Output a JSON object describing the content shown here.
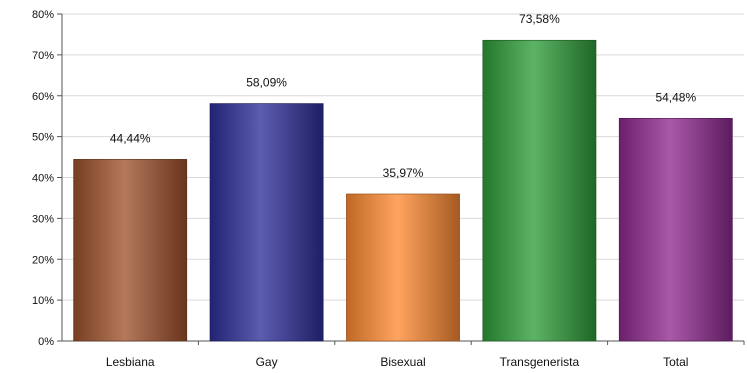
{
  "chart_data": {
    "type": "bar",
    "categories": [
      "Lesbiana",
      "Gay",
      "Bisexual",
      "Transgenerista",
      "Total"
    ],
    "values": [
      44.44,
      58.09,
      35.97,
      73.58,
      54.48
    ],
    "data_labels": [
      "44,44%",
      "58,09%",
      "35,97%",
      "73,58%",
      "54,48%"
    ],
    "ylim": [
      0,
      80
    ],
    "y_ticks": [
      0,
      10,
      20,
      30,
      40,
      50,
      60,
      70,
      80
    ],
    "y_tick_labels": [
      "0%",
      "10%",
      "20%",
      "30%",
      "40%",
      "50%",
      "60%",
      "70%",
      "80%"
    ],
    "grid": true,
    "colors": [
      "#a0522d",
      "#2e2e9a",
      "#ff8a33",
      "#2f9e3a",
      "#8f2a90"
    ],
    "title": "",
    "xlabel": "",
    "ylabel": ""
  }
}
